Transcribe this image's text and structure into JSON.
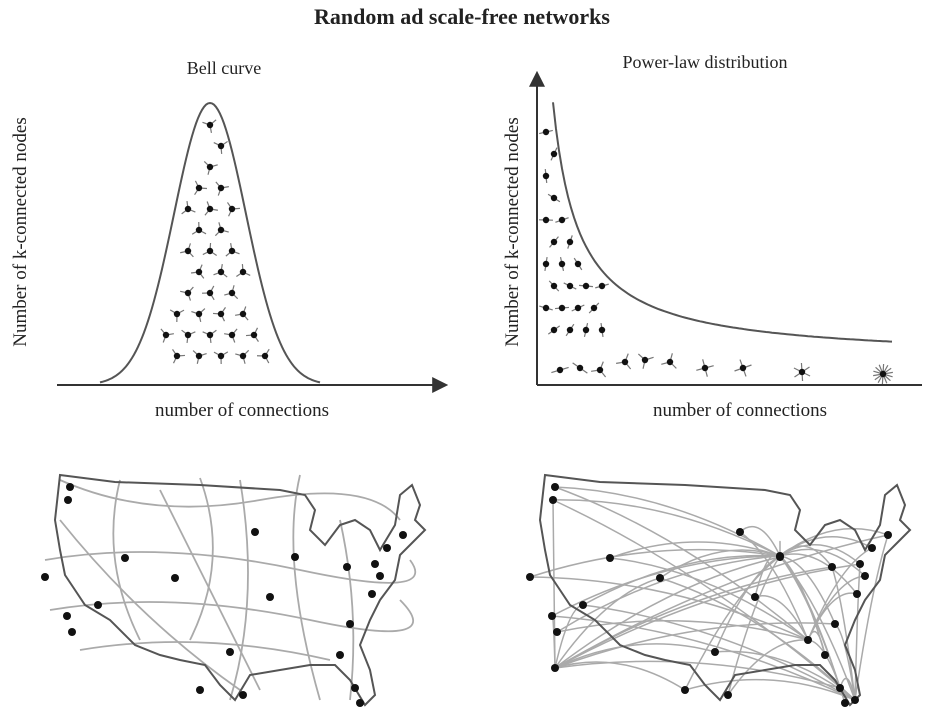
{
  "title": "Random ad scale-free networks",
  "panels": [
    {
      "title": "Bell curve",
      "y_label": "Number of k-connected nodes",
      "x_label": "number of connections"
    },
    {
      "title": "Power-law distribution",
      "y_label": "Number of k-connected nodes",
      "x_label": "number of connections"
    }
  ]
}
